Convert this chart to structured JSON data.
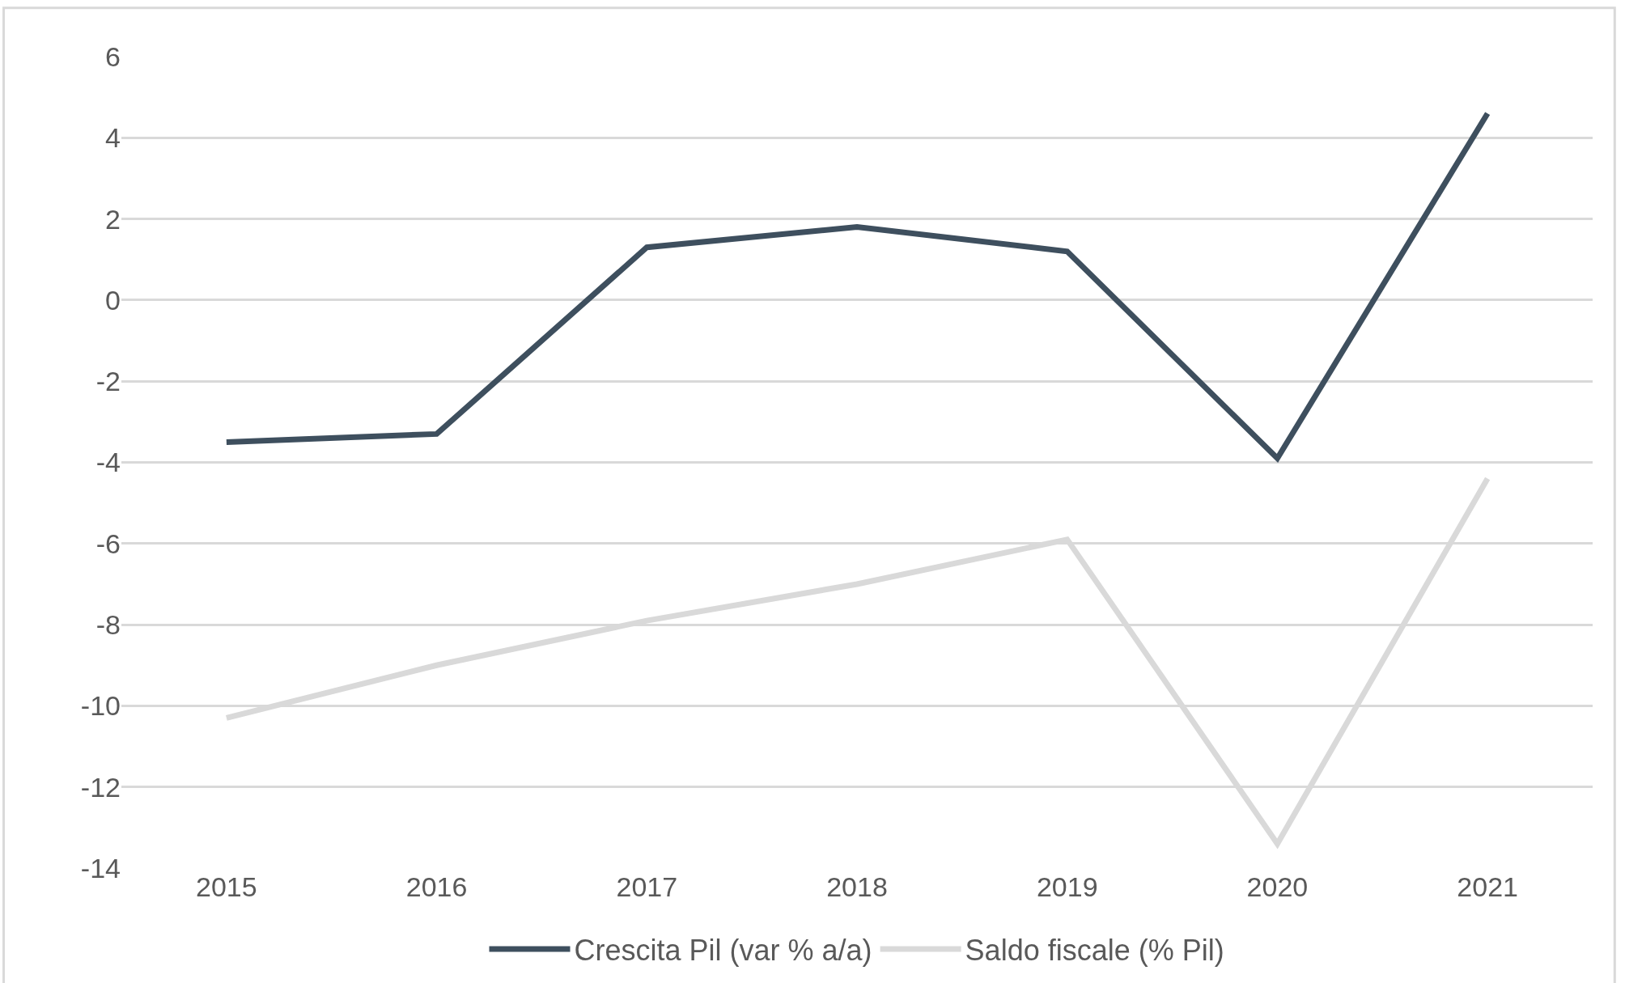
{
  "chart_data": {
    "type": "line",
    "categories": [
      "2015",
      "2016",
      "2017",
      "2018",
      "2019",
      "2020",
      "2021"
    ],
    "series": [
      {
        "name": "Crescita Pil (var % a/a)",
        "color": "#3e4f5e",
        "values": [
          -3.5,
          -3.3,
          1.3,
          1.8,
          1.2,
          -3.9,
          4.6
        ]
      },
      {
        "name": "Saldo fiscale (% Pil)",
        "color": "#d9d9d9",
        "values": [
          -10.3,
          -9.0,
          -7.9,
          -7.0,
          -5.9,
          -13.4,
          -4.4
        ]
      }
    ],
    "ylim": [
      -14,
      6
    ],
    "yticks": [
      -14,
      -12,
      -10,
      -8,
      -6,
      -4,
      -2,
      0,
      2,
      4,
      6
    ],
    "grid": "y",
    "legend": "bottom",
    "marker": "none",
    "line_style": "solid"
  }
}
